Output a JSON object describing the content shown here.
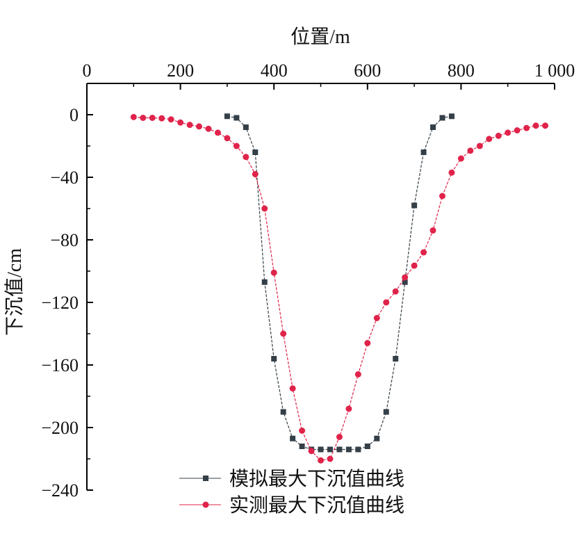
{
  "chart_data": {
    "type": "line",
    "xlabel": "位置/m",
    "ylabel": "下沉值/cm",
    "xlim": [
      0,
      1000
    ],
    "ylim": [
      -240,
      20
    ],
    "xticks": [
      0,
      200,
      400,
      600,
      800,
      1000
    ],
    "xtick_labels": [
      "0",
      "200",
      "400",
      "600",
      "800",
      "1 000"
    ],
    "yticks": [
      0,
      -40,
      -80,
      -120,
      -160,
      -200,
      -240
    ],
    "ytick_labels": [
      "0",
      "−40",
      "−80",
      "−120",
      "−160",
      "−200",
      "−240"
    ],
    "x_axis_position": "top",
    "legend_position": "bottom-center",
    "series": [
      {
        "name": "模拟最大下沉值曲线",
        "color": "#343f47",
        "marker": "square",
        "x": [
          300,
          320,
          340,
          360,
          380,
          400,
          420,
          440,
          460,
          480,
          500,
          520,
          540,
          560,
          580,
          600,
          620,
          640,
          660,
          680,
          700,
          720,
          740,
          760,
          780
        ],
        "y": [
          -1,
          -2,
          -8,
          -24,
          -107,
          -156,
          -190,
          -207,
          -212,
          -214,
          -214,
          -214,
          -214,
          -214,
          -214,
          -212,
          -207,
          -190,
          -156,
          -107,
          -58,
          -24,
          -8,
          -2,
          -1
        ]
      },
      {
        "name": "实测最大下沉值曲线",
        "color": "#e0234a",
        "marker": "circle",
        "x": [
          100,
          120,
          140,
          160,
          180,
          200,
          220,
          240,
          260,
          280,
          300,
          320,
          340,
          360,
          380,
          400,
          420,
          440,
          460,
          480,
          500,
          520,
          540,
          560,
          580,
          600,
          620,
          640,
          660,
          680,
          700,
          720,
          740,
          760,
          780,
          800,
          820,
          840,
          860,
          880,
          900,
          920,
          940,
          960,
          980
        ],
        "y": [
          -1.5,
          -2,
          -2,
          -2.3,
          -3,
          -5,
          -6.5,
          -7.5,
          -9,
          -11.5,
          -15,
          -20,
          -27,
          -38,
          -60,
          -101,
          -140,
          -175,
          -202,
          -215,
          -221,
          -220,
          -206,
          -188,
          -166,
          -146,
          -130,
          -120,
          -113,
          -104,
          -96.5,
          -88,
          -74,
          -52,
          -37,
          -28,
          -23,
          -20,
          -15.5,
          -13.5,
          -11.5,
          -10,
          -8.5,
          -7,
          -7
        ]
      }
    ]
  }
}
